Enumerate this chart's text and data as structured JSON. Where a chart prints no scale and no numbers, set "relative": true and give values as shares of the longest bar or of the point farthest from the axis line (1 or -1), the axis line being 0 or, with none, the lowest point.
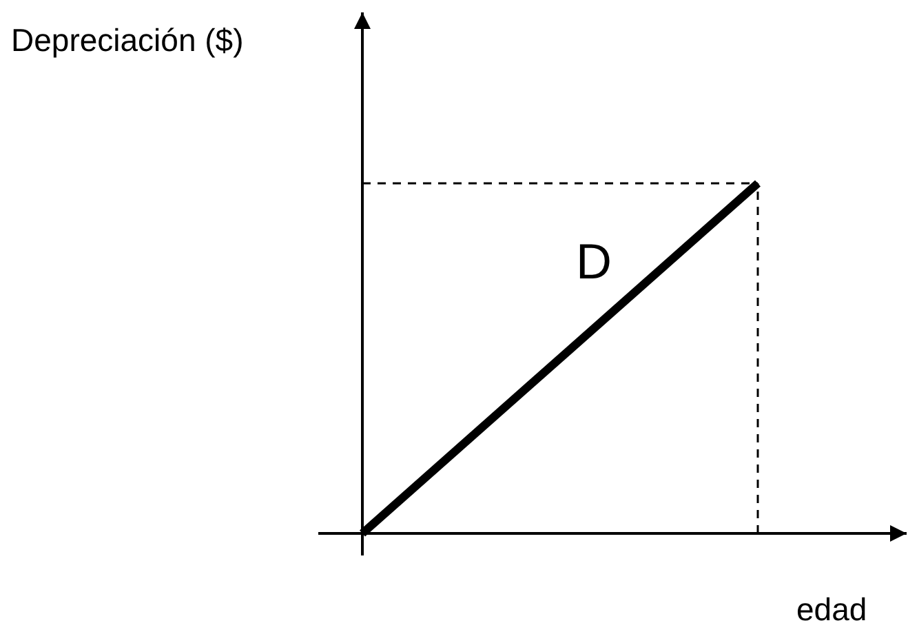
{
  "chart_data": {
    "type": "line",
    "relative": true,
    "xlabel": "edad",
    "ylabel": "Depreciación ($)",
    "categories": [
      null,
      null
    ],
    "series": [
      {
        "name": "D",
        "color": "#000000",
        "values": [
          0,
          1
        ]
      }
    ],
    "ref_lines": [
      {
        "axis": "y",
        "value": 1,
        "line_style": "dashed",
        "color": "#000000"
      }
    ],
    "legend": false
  }
}
